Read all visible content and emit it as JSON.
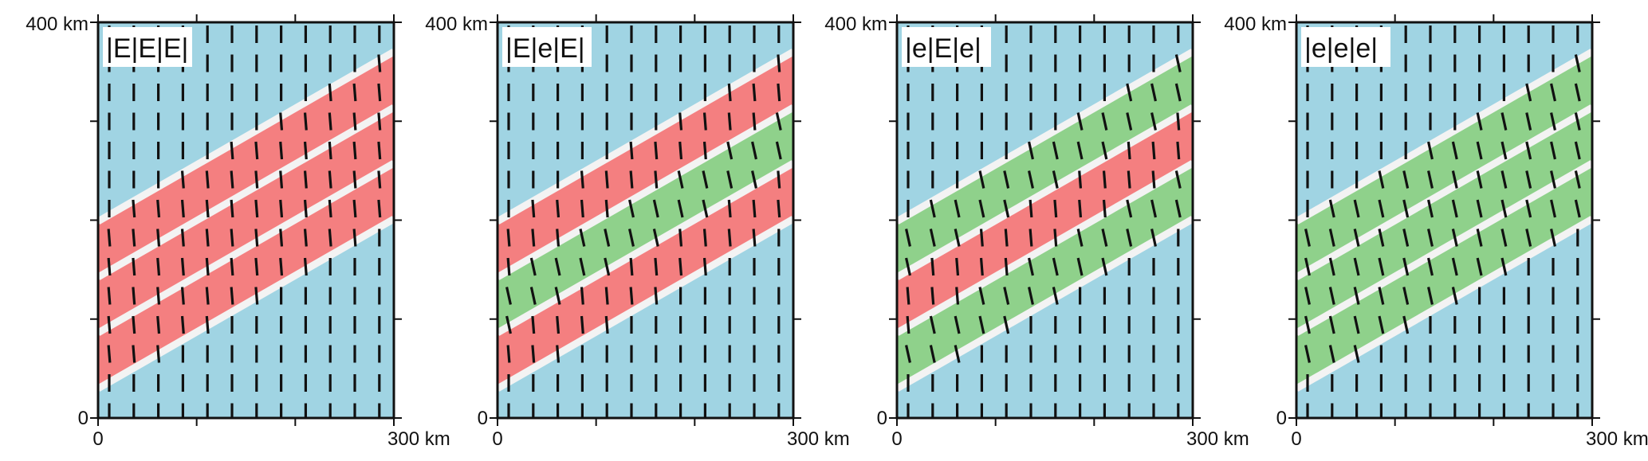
{
  "axis": {
    "y_top_label": "400 km",
    "y_bottom_label": "0",
    "x_left_label": "0",
    "x_right_label": "300 km"
  },
  "colors": {
    "background": "#a0d4e3",
    "strong_layer": "#f47f80",
    "weak_layer": "#8fd18b",
    "separator": "#f3f3f3",
    "tick": "#111111"
  },
  "panels": [
    {
      "label": "|E|E|E|",
      "layers": [
        "E",
        "E",
        "E"
      ]
    },
    {
      "label": "|E|e|E|",
      "layers": [
        "E",
        "e",
        "E"
      ]
    },
    {
      "label": "|e|E|e|",
      "layers": [
        "e",
        "E",
        "e"
      ]
    },
    {
      "label": "|e|e|e|",
      "layers": [
        "e",
        "e",
        "e"
      ]
    }
  ]
}
